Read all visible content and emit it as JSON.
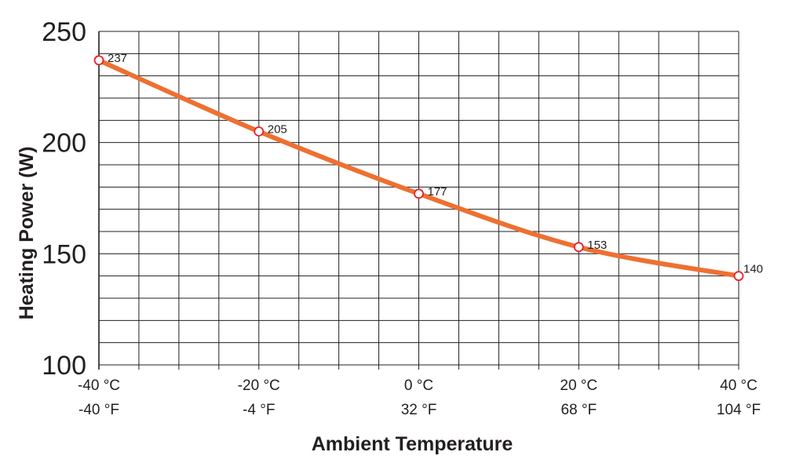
{
  "chart_data": {
    "type": "line",
    "title": "",
    "xlabel": "Ambient Temperature",
    "ylabel": "Heating Power (W)",
    "x": [
      -40,
      -20,
      0,
      20,
      40
    ],
    "x_tick_labels_c": [
      "-40 °C",
      "-20 °C",
      "0 °C",
      "20 °C",
      "40 °C"
    ],
    "x_tick_labels_f": [
      "-40 °F",
      "-4 °F",
      "32 °F",
      "68 °F",
      "104 °F"
    ],
    "xlim": [
      -40,
      40
    ],
    "y_ticks": [
      "100",
      "150",
      "200",
      "250"
    ],
    "ylim": [
      100,
      250
    ],
    "series": [
      {
        "values": [
          237,
          205,
          177,
          153,
          140
        ],
        "labels": [
          "237",
          "205",
          "177",
          "153",
          "140"
        ]
      }
    ],
    "grid": true,
    "colors": {
      "line": "#ee7031",
      "marker_stroke": "#e8212b",
      "grid": "#231f20"
    }
  }
}
